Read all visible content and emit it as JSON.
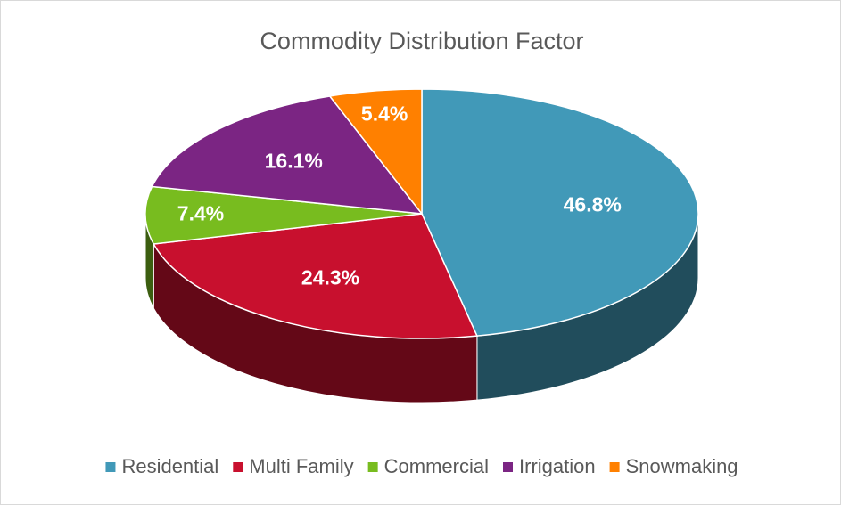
{
  "chart_data": {
    "type": "pie",
    "title": "Commodity Distribution Factor",
    "categories": [
      "Residential",
      "Multi Family",
      "Commercial",
      "Irrigation",
      "Snowmaking"
    ],
    "values": [
      46.8,
      24.3,
      7.4,
      16.1,
      5.4
    ],
    "value_labels": [
      "46.8%",
      "24.3%",
      "7.4%",
      "16.1%",
      "5.4%"
    ],
    "colors": [
      "#4199b8",
      "#c8102e",
      "#78bc1f",
      "#7b2583",
      "#ff8000"
    ],
    "legend": "bottom",
    "style": "3d"
  }
}
